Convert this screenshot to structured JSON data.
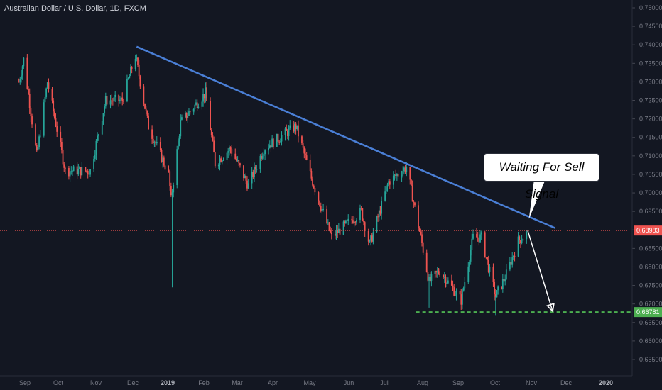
{
  "chart_data": {
    "type": "candlestick",
    "title": "Australian Dollar / U.S. Dollar, 1D, FXCM",
    "y_ticks": [
      "0.75000",
      "0.74500",
      "0.74000",
      "0.73500",
      "0.73000",
      "0.72500",
      "0.72000",
      "0.71500",
      "0.71000",
      "0.70500",
      "0.70000",
      "0.69500",
      "0.69000",
      "0.68500",
      "0.68000",
      "0.67500",
      "0.67000",
      "0.66500",
      "0.66000",
      "0.65500"
    ],
    "ylim": [
      0.652,
      0.752
    ],
    "x_ticks": [
      "Sep",
      "Oct",
      "Nov",
      "Dec",
      "2019",
      "Feb",
      "Mar",
      "Apr",
      "May",
      "Jun",
      "Jul",
      "Aug",
      "Sep",
      "Oct",
      "Nov",
      "Dec",
      "2020"
    ],
    "x_tick_bold": [
      "2019",
      "2020"
    ],
    "price_key_points": [
      {
        "date": "2018-08-27",
        "close": 0.73
      },
      {
        "date": "2018-08-31",
        "close": 0.736
      },
      {
        "date": "2018-09-11",
        "close": 0.71
      },
      {
        "date": "2018-09-20",
        "close": 0.73
      },
      {
        "date": "2018-10-05",
        "close": 0.706
      },
      {
        "date": "2018-10-26",
        "close": 0.706
      },
      {
        "date": "2018-11-08",
        "close": 0.725
      },
      {
        "date": "2018-11-22",
        "close": 0.725
      },
      {
        "date": "2018-12-03",
        "close": 0.737
      },
      {
        "date": "2018-12-14",
        "close": 0.718
      },
      {
        "date": "2018-12-31",
        "close": 0.705
      },
      {
        "date": "2019-01-02",
        "close": 0.698
      },
      {
        "date": "2019-01-10",
        "close": 0.719
      },
      {
        "date": "2019-01-31",
        "close": 0.727
      },
      {
        "date": "2019-02-08",
        "close": 0.708
      },
      {
        "date": "2019-02-21",
        "close": 0.712
      },
      {
        "date": "2019-03-08",
        "close": 0.702
      },
      {
        "date": "2019-03-21",
        "close": 0.712
      },
      {
        "date": "2019-04-17",
        "close": 0.718
      },
      {
        "date": "2019-04-30",
        "close": 0.704
      },
      {
        "date": "2019-05-17",
        "close": 0.688
      },
      {
        "date": "2019-06-11",
        "close": 0.695
      },
      {
        "date": "2019-06-18",
        "close": 0.686
      },
      {
        "date": "2019-07-04",
        "close": 0.703
      },
      {
        "date": "2019-07-19",
        "close": 0.707
      },
      {
        "date": "2019-07-31",
        "close": 0.688
      },
      {
        "date": "2019-08-07",
        "close": 0.676
      },
      {
        "date": "2019-08-16",
        "close": 0.679
      },
      {
        "date": "2019-09-03",
        "close": 0.671
      },
      {
        "date": "2019-09-13",
        "close": 0.688
      },
      {
        "date": "2019-09-20",
        "close": 0.688
      },
      {
        "date": "2019-10-02",
        "close": 0.672
      },
      {
        "date": "2019-10-11",
        "close": 0.678
      },
      {
        "date": "2019-10-21",
        "close": 0.687
      },
      {
        "date": "2019-10-28",
        "close": 0.689
      }
    ],
    "spikes": [
      {
        "date": "2019-01-03",
        "low": 0.6745
      },
      {
        "date": "2019-08-07",
        "low": 0.669
      },
      {
        "date": "2019-10-02",
        "low": 0.667
      }
    ],
    "trendline": {
      "start": {
        "date": "2018-12-04",
        "price": 0.7395
      },
      "end": {
        "date": "2019-11-21",
        "price": 0.6905
      }
    },
    "support_level": {
      "price": 0.66781,
      "label": "0.66781",
      "from": "2019-07-27"
    },
    "current_price": {
      "price": 0.68983,
      "label": "0.68983"
    },
    "forecast_arrow": {
      "start": {
        "date": "2019-10-29",
        "price": 0.6898
      },
      "end": {
        "date": "2019-11-19",
        "price": 0.668
      }
    },
    "callout_text": "Waiting For Sell Signal"
  },
  "colors": {
    "background": "#131722",
    "up": "#26a69a",
    "down": "#ef5350",
    "trendline": "#4a7fd6",
    "support": "#4caf50",
    "current_price": "#ef5350",
    "axis_text": "#787b86",
    "arrow": "#ffffff"
  }
}
